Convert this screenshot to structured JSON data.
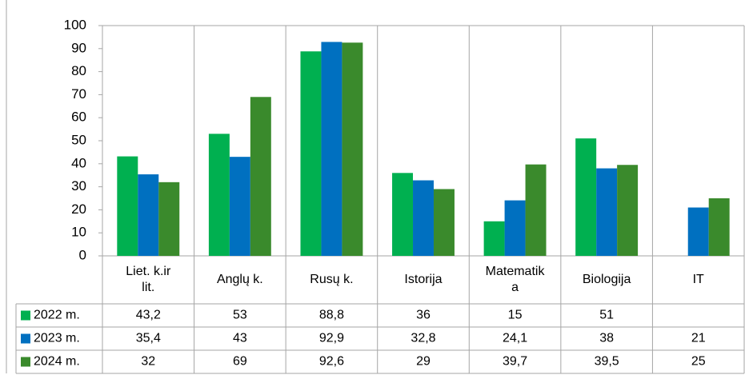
{
  "chart_data": {
    "type": "bar",
    "categories": [
      "Liet. k.ir lit.",
      "Anglų k.",
      "Rusų k.",
      "Istorija",
      "Matematika",
      "Biologija",
      "IT"
    ],
    "series": [
      {
        "name": "2022 m.",
        "color": "#00b050",
        "values": [
          43.2,
          53,
          88.8,
          36,
          15,
          51,
          null
        ],
        "value_labels": [
          "43,2",
          "53",
          "88,8",
          "36",
          "15",
          "51",
          null
        ]
      },
      {
        "name": "2023 m.",
        "color": "#0070c0",
        "values": [
          35.4,
          43,
          92.9,
          32.8,
          24.1,
          38,
          21
        ],
        "value_labels": [
          "35,4",
          "43",
          "92,9",
          "32,8",
          "24,1",
          "38",
          "21"
        ]
      },
      {
        "name": "2024 m.",
        "color": "#3a8a2c",
        "values": [
          32,
          69,
          92.6,
          29,
          39.7,
          39.5,
          25
        ],
        "value_labels": [
          "32",
          "69",
          "92,6",
          "29",
          "39,7",
          "39,5",
          "25"
        ]
      }
    ],
    "ylim": [
      0,
      100
    ],
    "yticks": [
      0,
      10,
      20,
      30,
      40,
      50,
      60,
      70,
      80,
      90,
      100
    ],
    "grid": "vertical",
    "legend": "table"
  }
}
